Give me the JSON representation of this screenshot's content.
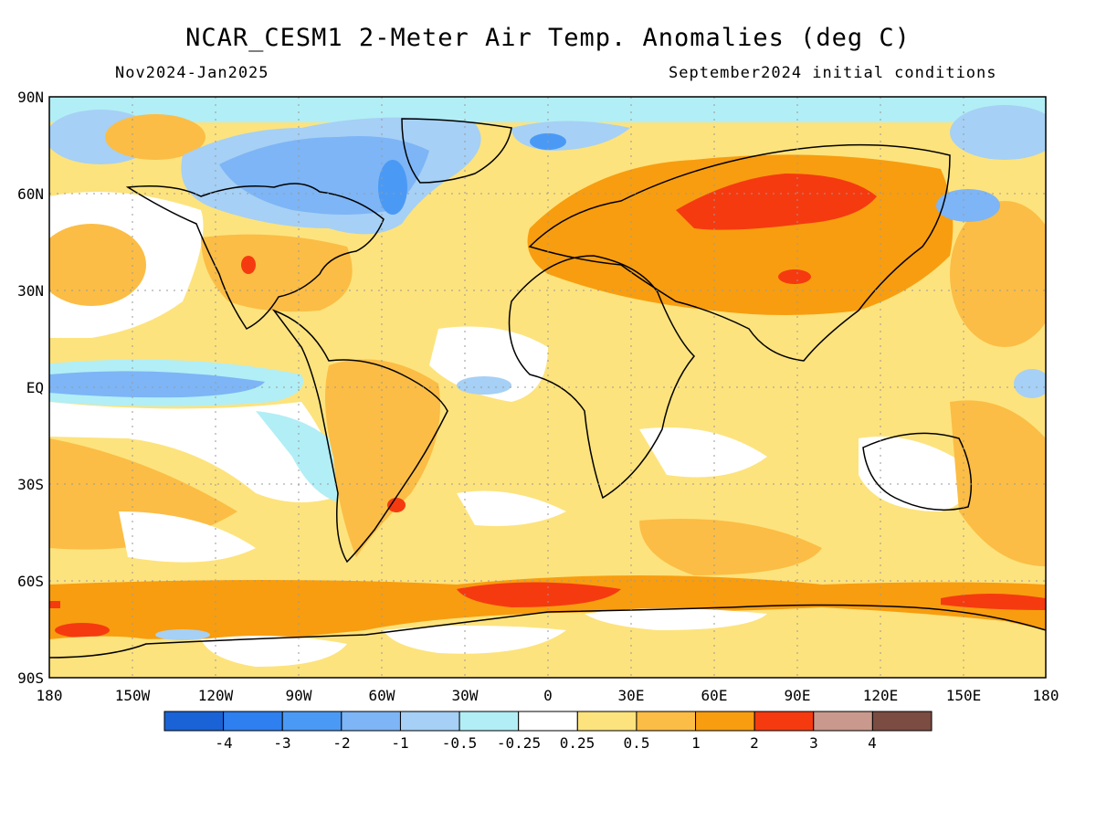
{
  "title": "NCAR_CESM1 2-Meter Air Temp. Anomalies (deg C)",
  "period": "Nov2024-Jan2025",
  "initial_conditions": "September2024 initial conditions",
  "map": {
    "projection": "equirectangular",
    "lon_range": [
      -180,
      180
    ],
    "lat_range": [
      -90,
      90
    ],
    "grid": "dotted",
    "lat_ticks": [
      "90N",
      "60N",
      "30N",
      "EQ",
      "30S",
      "60S",
      "90S"
    ],
    "lon_ticks": [
      "180",
      "150W",
      "120W",
      "90W",
      "60W",
      "30W",
      "0",
      "30E",
      "60E",
      "90E",
      "120E",
      "150E",
      "180"
    ]
  },
  "colorbar": {
    "labels": [
      "-4",
      "-3",
      "-2",
      "-1",
      "-0.5",
      "-0.25",
      "0.25",
      "0.5",
      "1",
      "2",
      "3",
      "4"
    ],
    "colors": [
      "#1a63d6",
      "#2e7ff0",
      "#4a9af5",
      "#7db5f6",
      "#a6d0f5",
      "#b2eef6",
      "#ffffff",
      "#fde37d",
      "#fbbd45",
      "#f89d0f",
      "#f53a10",
      "#c8998c",
      "#7b4c42"
    ]
  },
  "colors": {
    "warm_light": "#fde37d",
    "warm_mid": "#fbbd45",
    "warm_strong": "#f89d0f",
    "hot": "#f53a10",
    "cool_faint": "#b2eef6",
    "cool_light": "#a6d0f5",
    "cool_mid": "#7db5f6",
    "cool_strong": "#4a9af5",
    "neutral": "#ffffff",
    "coastline": "#000000"
  }
}
